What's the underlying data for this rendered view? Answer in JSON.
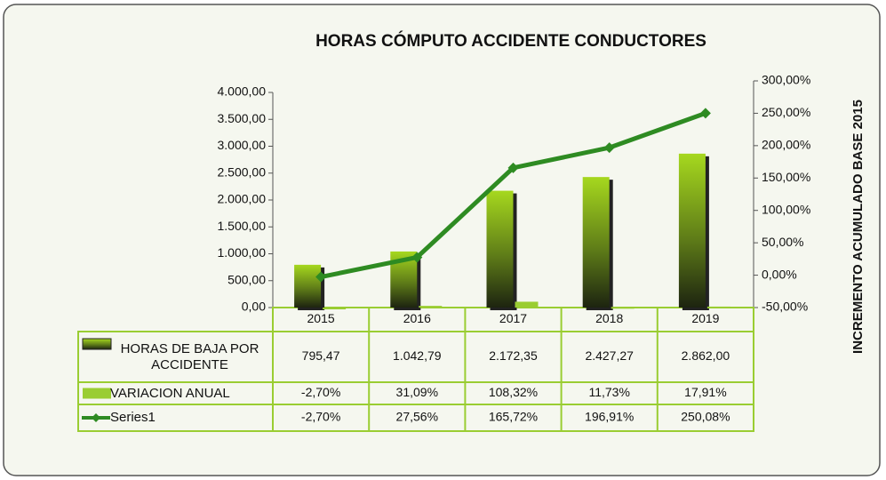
{
  "chart_data": {
    "type": "bar",
    "title": "HORAS CÓMPUTO ACCIDENTE CONDUCTORES",
    "y2_label": "INCREMENTO ACUMULADO BASE 2015",
    "categories": [
      "2015",
      "2016",
      "2017",
      "2018",
      "2019"
    ],
    "series": [
      {
        "name": "HORAS DE BAJA POR ACCIDENTE",
        "type": "bar",
        "color": "#8fc31f",
        "values": [
          795.47,
          1042.79,
          2172.35,
          2427.27,
          2862.0
        ],
        "value_labels": [
          "795,47",
          "1.042,79",
          "2.172,35",
          "2.427,27",
          "2.862,00"
        ]
      },
      {
        "name": "VARIACION ANUAL",
        "type": "bar",
        "color": "#9acd32",
        "values": [
          -2.7,
          31.09,
          108.32,
          11.73,
          17.91
        ],
        "value_labels": [
          "-2,70%",
          "31,09%",
          "108,32%",
          "11,73%",
          "17,91%"
        ]
      },
      {
        "name": "Series1",
        "type": "line",
        "axis": "y2",
        "color": "#2e8b22",
        "values": [
          -2.7,
          27.56,
          165.72,
          196.91,
          250.08
        ],
        "value_labels": [
          "-2,70%",
          "27,56%",
          "165,72%",
          "196,91%",
          "250,08%"
        ]
      }
    ],
    "ylim": [
      0,
      4000
    ],
    "yticks": [
      {
        "value": 0,
        "label": "0,00"
      },
      {
        "value": 500,
        "label": "500,00"
      },
      {
        "value": 1000,
        "label": "1.000,00"
      },
      {
        "value": 1500,
        "label": "1.500,00"
      },
      {
        "value": 2000,
        "label": "2.000,00"
      },
      {
        "value": 2500,
        "label": "2.500,00"
      },
      {
        "value": 3000,
        "label": "3.000,00"
      },
      {
        "value": 3500,
        "label": "3.500,00"
      },
      {
        "value": 4000,
        "label": "4.000,00"
      }
    ],
    "y2lim": [
      -50,
      300
    ],
    "y2ticks": [
      {
        "value": -50,
        "label": "-50,00%"
      },
      {
        "value": 0,
        "label": "0,00%"
      },
      {
        "value": 50,
        "label": "50,00%"
      },
      {
        "value": 100,
        "label": "100,00%"
      },
      {
        "value": 150,
        "label": "150,00%"
      },
      {
        "value": 200,
        "label": "200,00%"
      },
      {
        "value": 250,
        "label": "250,00%"
      },
      {
        "value": 300,
        "label": "300,00%"
      }
    ],
    "data_table": true
  }
}
